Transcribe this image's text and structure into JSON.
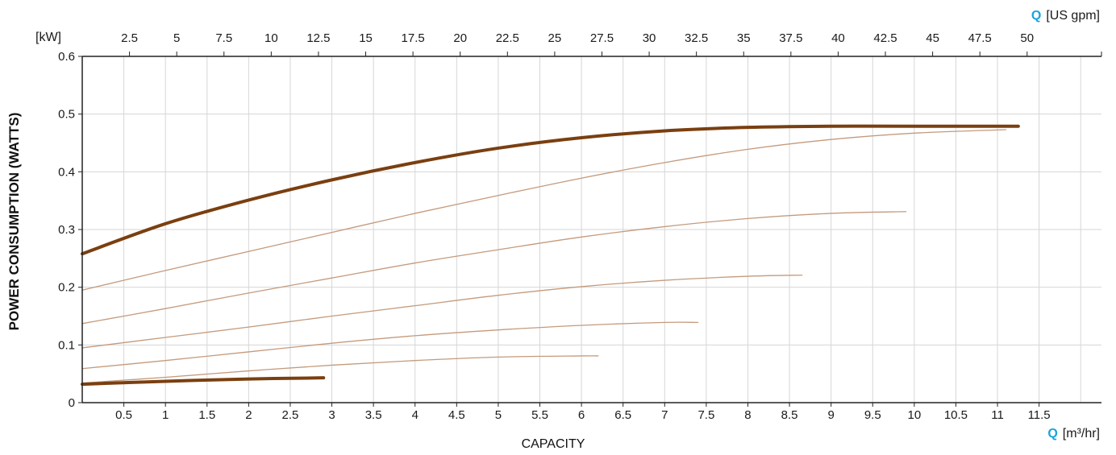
{
  "chart_data": {
    "type": "line",
    "xlabel": "CAPACITY",
    "ylabel": "POWER CONSUMPTION (WATTS)",
    "y_unit": "[kW]",
    "x_unit_bottom": {
      "symbol": "Q",
      "unit": "[m³/hr]"
    },
    "x_unit_top": {
      "symbol": "Q",
      "unit": "[US gpm]"
    },
    "xlim": [
      0,
      12.25
    ],
    "ylim": [
      0,
      0.6
    ],
    "x_ticks": [
      "0.5",
      "1",
      "1.5",
      "2",
      "2.5",
      "3",
      "3.5",
      "4",
      "4.5",
      "5",
      "5.5",
      "6",
      "6.5",
      "7",
      "7.5",
      "8",
      "8.5",
      "9",
      "9.5",
      "10",
      "10.5",
      "11",
      "11.5"
    ],
    "y_ticks": [
      "0",
      "0.1",
      "0.2",
      "0.3",
      "0.4",
      "0.5",
      "0.6"
    ],
    "top_ticks": [
      "2.5",
      "5",
      "7.5",
      "10",
      "12.5",
      "15",
      "17.5",
      "20",
      "22.5",
      "25",
      "27.5",
      "30",
      "32.5",
      "35",
      "37.5",
      "40",
      "42.5",
      "45",
      "47.5",
      "50"
    ],
    "grid": true,
    "series": [
      {
        "style": "bold",
        "color": "#7a3f10",
        "x": [
          0,
          1,
          2,
          3,
          4,
          5,
          6,
          7,
          8,
          9,
          10,
          11.25
        ],
        "y": [
          0.258,
          0.31,
          0.351,
          0.386,
          0.416,
          0.441,
          0.459,
          0.471,
          0.477,
          0.479,
          0.479,
          0.479
        ]
      },
      {
        "style": "thin",
        "color": "#c49a7c",
        "x": [
          0,
          1,
          2,
          3,
          4,
          5,
          6,
          7,
          8,
          9,
          10,
          11.1
        ],
        "y": [
          0.195,
          0.229,
          0.262,
          0.295,
          0.328,
          0.359,
          0.389,
          0.416,
          0.439,
          0.456,
          0.467,
          0.473
        ]
      },
      {
        "style": "thin",
        "color": "#c49a7c",
        "x": [
          0,
          1,
          2,
          3,
          4,
          5,
          6,
          7,
          8,
          9,
          9.9
        ],
        "y": [
          0.137,
          0.163,
          0.19,
          0.216,
          0.242,
          0.265,
          0.287,
          0.305,
          0.319,
          0.328,
          0.331
        ]
      },
      {
        "style": "thin",
        "color": "#c49a7c",
        "x": [
          0,
          1,
          2,
          3,
          4,
          5,
          6,
          7,
          8,
          8.65
        ],
        "y": [
          0.095,
          0.113,
          0.131,
          0.15,
          0.168,
          0.186,
          0.201,
          0.212,
          0.219,
          0.221
        ]
      },
      {
        "style": "thin",
        "color": "#c49a7c",
        "x": [
          0,
          1,
          2,
          3,
          4,
          5,
          6,
          7,
          7.4
        ],
        "y": [
          0.059,
          0.073,
          0.088,
          0.103,
          0.116,
          0.126,
          0.134,
          0.139,
          0.139
        ]
      },
      {
        "style": "thin",
        "color": "#c49a7c",
        "x": [
          0,
          1,
          2,
          3,
          4,
          5,
          6,
          6.2
        ],
        "y": [
          0.034,
          0.044,
          0.055,
          0.065,
          0.073,
          0.079,
          0.081,
          0.081
        ]
      },
      {
        "style": "bold",
        "color": "#7a3f10",
        "x": [
          0,
          1,
          2,
          2.9
        ],
        "y": [
          0.032,
          0.037,
          0.041,
          0.043
        ]
      }
    ]
  }
}
